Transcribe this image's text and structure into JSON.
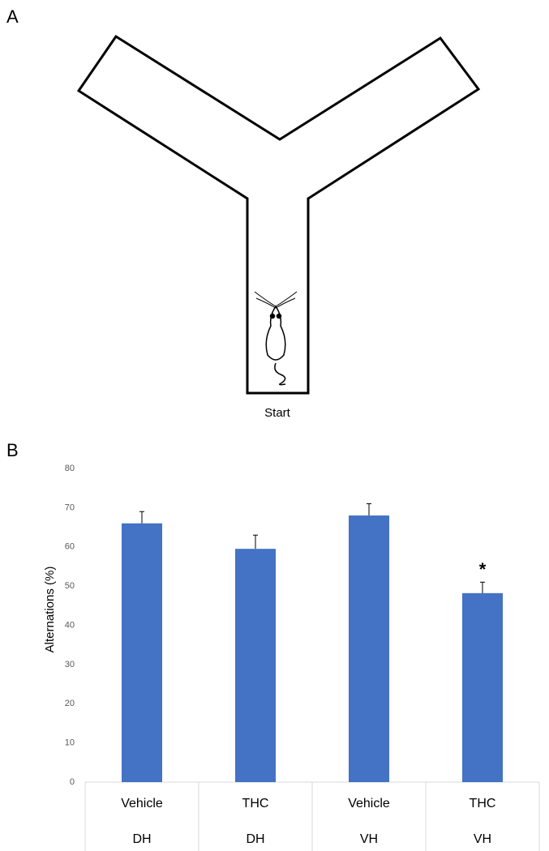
{
  "panel_labels": [
    "A",
    "B"
  ],
  "maze": {
    "start_label": "Start"
  },
  "chart_data": {
    "type": "bar",
    "y_label": "Alternations (%)",
    "categories": [
      "Vehicle",
      "THC",
      "Vehicle",
      "THC"
    ],
    "groups": [
      "DH",
      "DH",
      "VH",
      "VH"
    ],
    "values": [
      66,
      59.5,
      68,
      48.2
    ],
    "errors": [
      3,
      3.5,
      3,
      2.8
    ],
    "significance": [
      null,
      null,
      null,
      "*"
    ],
    "color": "#4472c4",
    "ylim": [
      0,
      80
    ],
    "yticks": [
      0,
      10,
      20,
      30,
      40,
      50,
      60,
      70,
      80
    ],
    "grid": false
  }
}
